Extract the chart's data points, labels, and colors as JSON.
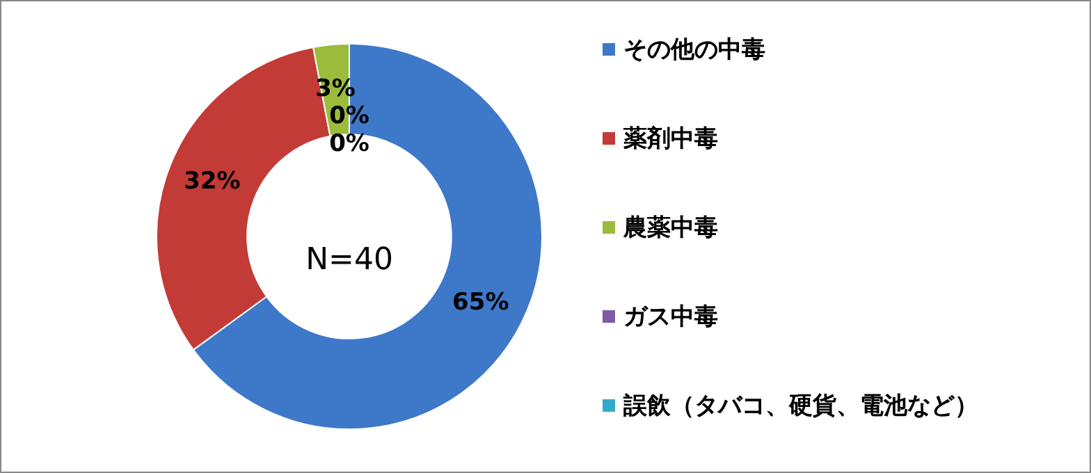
{
  "chart_data": {
    "type": "donut",
    "categories": [
      "その他の中毒",
      "薬剤中毒",
      "農薬中毒",
      "ガス中毒",
      "誤飲（タバコ、硬貨、電池など）"
    ],
    "values": [
      65,
      32,
      3,
      0,
      0
    ],
    "value_labels": [
      "65%",
      "32%",
      "3%",
      "0%",
      "0%"
    ],
    "colors": [
      "#3d78c9",
      "#c23b36",
      "#9bbb3b",
      "#7d5ba6",
      "#35aac8"
    ],
    "legend": "right",
    "annotations": [
      "N=40"
    ]
  }
}
